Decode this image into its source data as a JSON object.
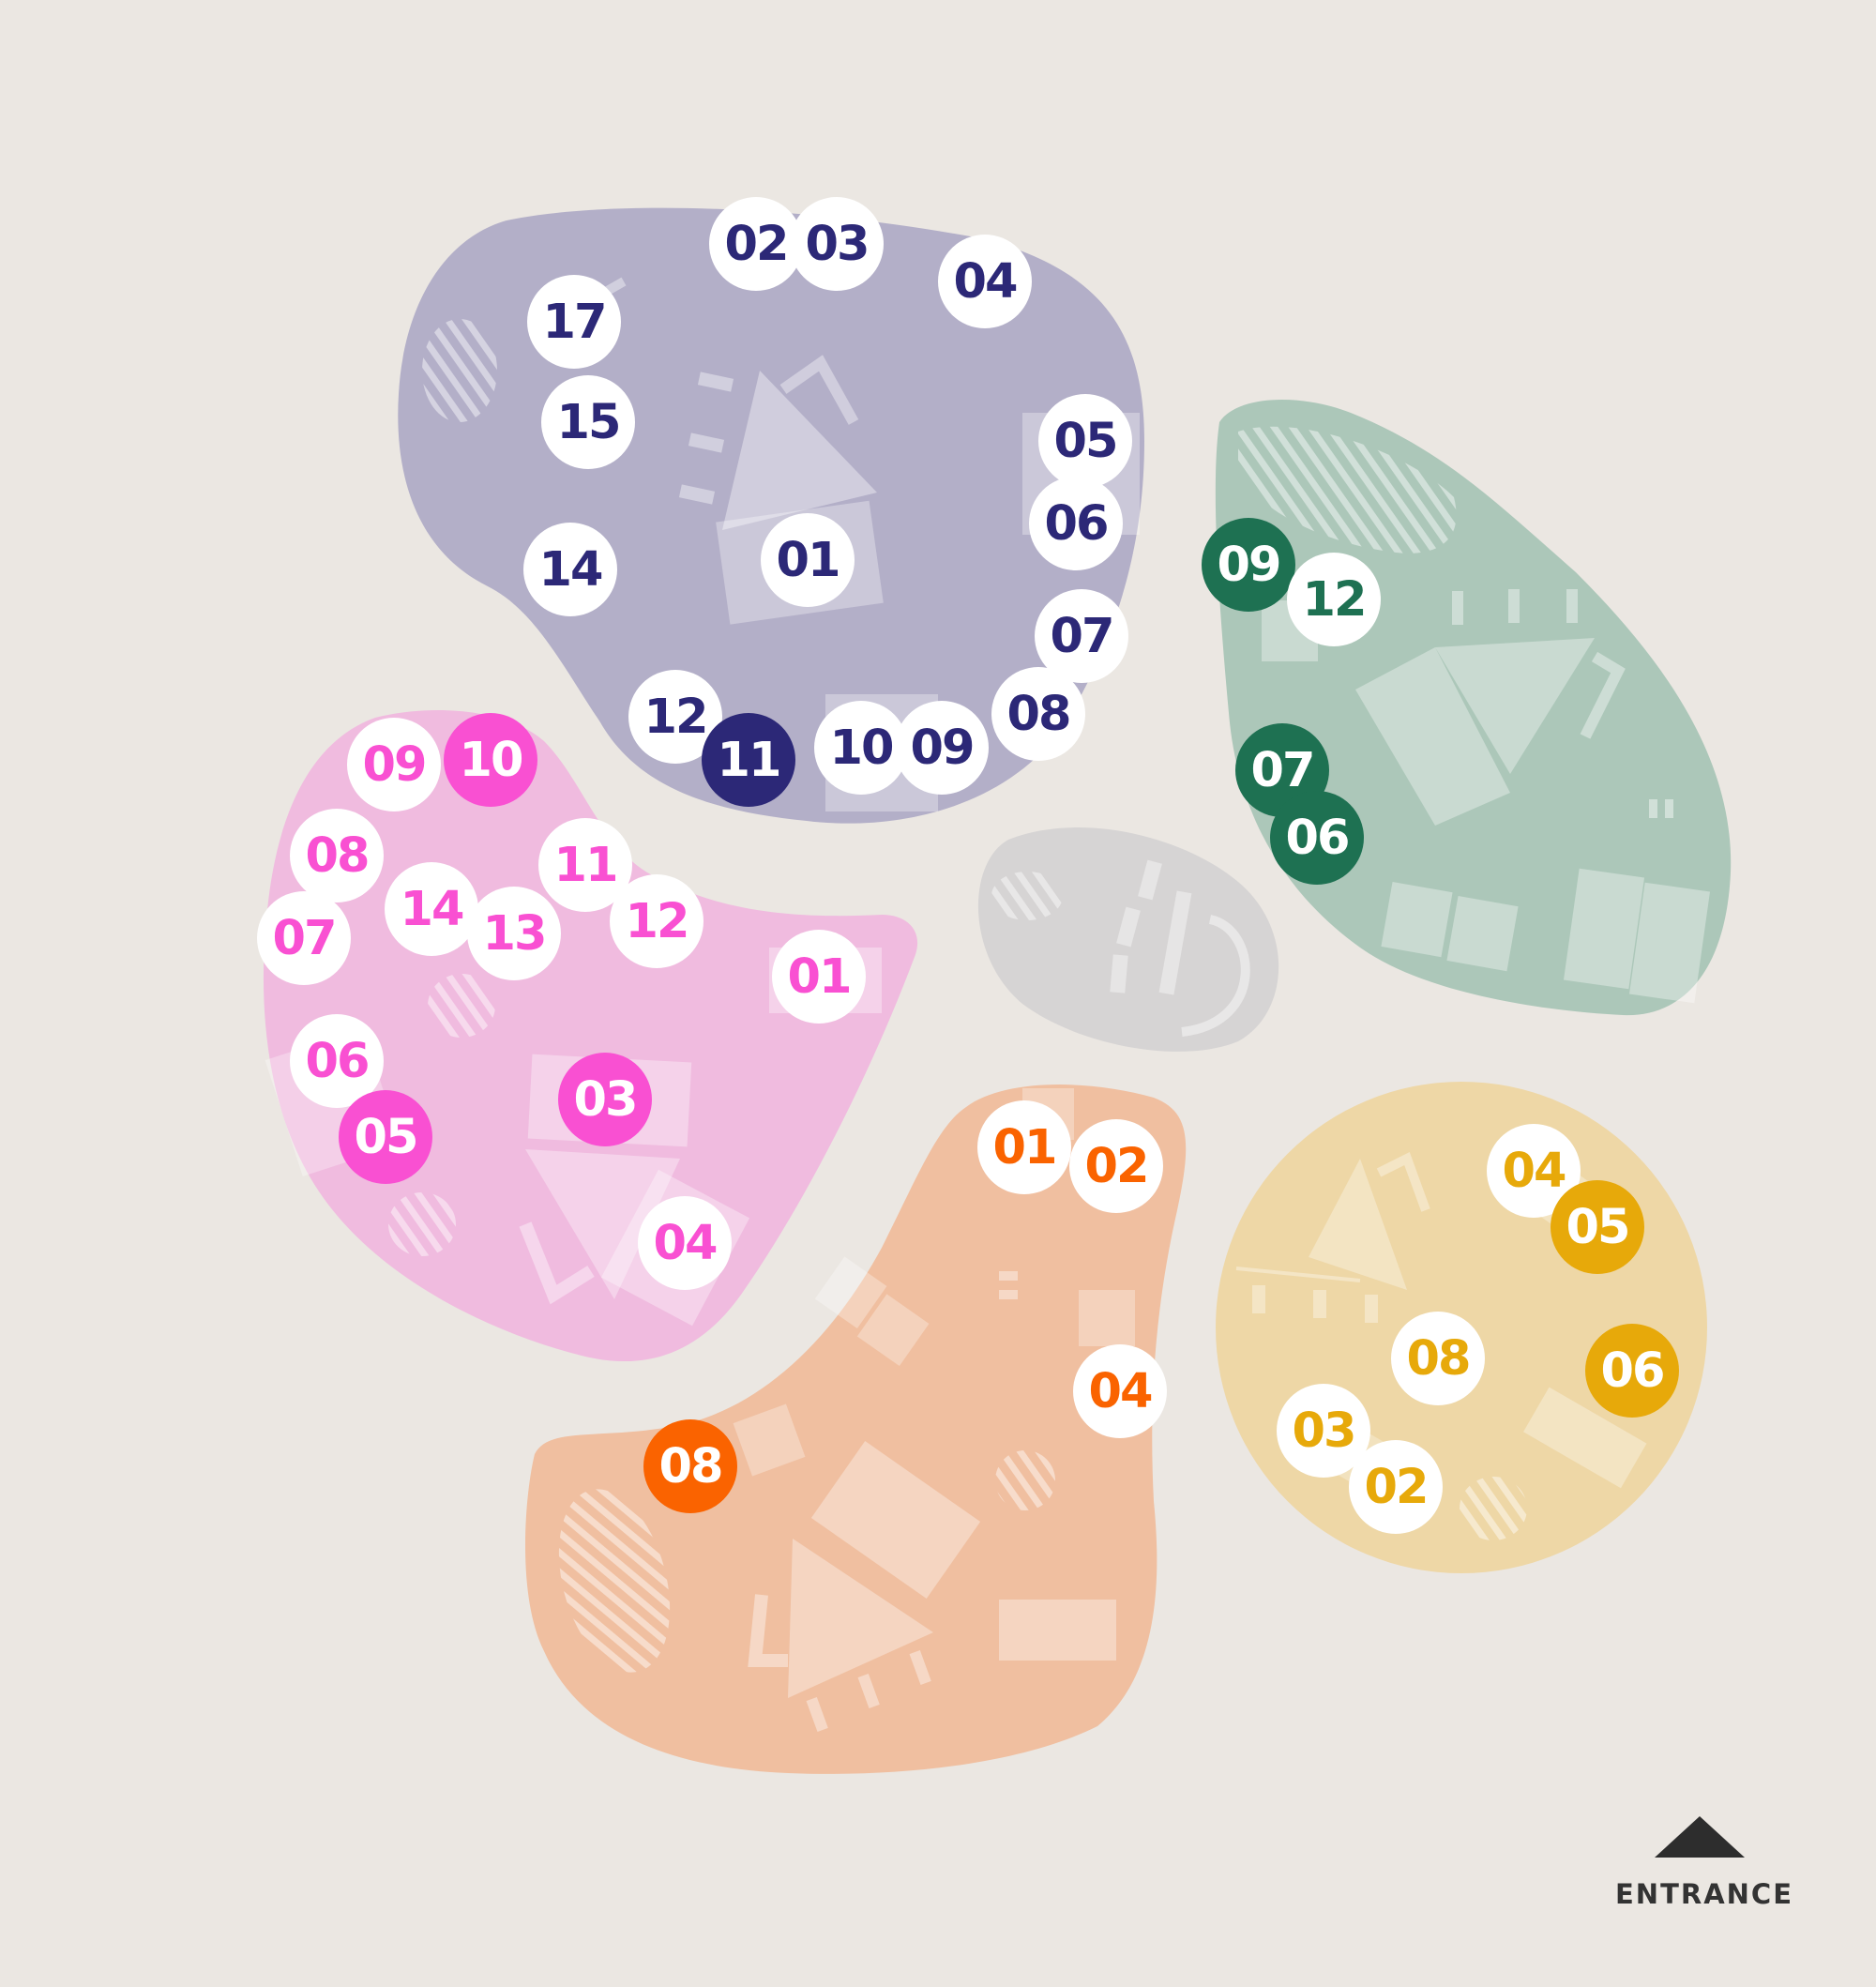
{
  "colors": {
    "background": "#ebe7e2",
    "zone_purple": "#2c2877",
    "zone_purple_fill": "#b3afc8",
    "zone_green": "#1e7152",
    "zone_green_fill": "#acc7b9",
    "zone_pink": "#f950d2",
    "zone_pink_fill": "#f0bbdf",
    "zone_orange": "#fa6300",
    "zone_orange_fill": "#f0bfa0",
    "zone_yellow": "#e7a90a",
    "zone_yellow_fill": "#eed7a6",
    "zone_grey_fill": "#d6d4d4"
  },
  "zones": {
    "purple": {
      "stands": [
        {
          "label": "02",
          "highlight": false
        },
        {
          "label": "03",
          "highlight": false
        },
        {
          "label": "04",
          "highlight": false
        },
        {
          "label": "17",
          "highlight": false
        },
        {
          "label": "15",
          "highlight": false
        },
        {
          "label": "05",
          "highlight": false
        },
        {
          "label": "06",
          "highlight": false
        },
        {
          "label": "14",
          "highlight": false
        },
        {
          "label": "01",
          "highlight": false
        },
        {
          "label": "07",
          "highlight": false
        },
        {
          "label": "12",
          "highlight": false
        },
        {
          "label": "08",
          "highlight": false
        },
        {
          "label": "11",
          "highlight": true
        },
        {
          "label": "10",
          "highlight": false
        },
        {
          "label": "09",
          "highlight": false
        }
      ]
    },
    "green": {
      "stands": [
        {
          "label": "09",
          "highlight": true
        },
        {
          "label": "12",
          "highlight": false
        },
        {
          "label": "07",
          "highlight": true
        },
        {
          "label": "06",
          "highlight": true
        }
      ]
    },
    "pink": {
      "stands": [
        {
          "label": "09",
          "highlight": false
        },
        {
          "label": "10",
          "highlight": true
        },
        {
          "label": "08",
          "highlight": false
        },
        {
          "label": "11",
          "highlight": false
        },
        {
          "label": "14",
          "highlight": false
        },
        {
          "label": "07",
          "highlight": false
        },
        {
          "label": "13",
          "highlight": false
        },
        {
          "label": "12",
          "highlight": false
        },
        {
          "label": "01",
          "highlight": false
        },
        {
          "label": "06",
          "highlight": false
        },
        {
          "label": "03",
          "highlight": true
        },
        {
          "label": "05",
          "highlight": true
        },
        {
          "label": "04",
          "highlight": false
        }
      ]
    },
    "orange": {
      "stands": [
        {
          "label": "01",
          "highlight": false
        },
        {
          "label": "02",
          "highlight": false
        },
        {
          "label": "04",
          "highlight": false
        },
        {
          "label": "08",
          "highlight": true
        }
      ]
    },
    "yellow": {
      "stands": [
        {
          "label": "04",
          "highlight": false
        },
        {
          "label": "05",
          "highlight": true
        },
        {
          "label": "08",
          "highlight": false
        },
        {
          "label": "06",
          "highlight": true
        },
        {
          "label": "03",
          "highlight": false
        },
        {
          "label": "02",
          "highlight": false
        }
      ]
    }
  },
  "entrance": {
    "label": "ENTRANCE",
    "icon": "triangle-up-icon"
  }
}
